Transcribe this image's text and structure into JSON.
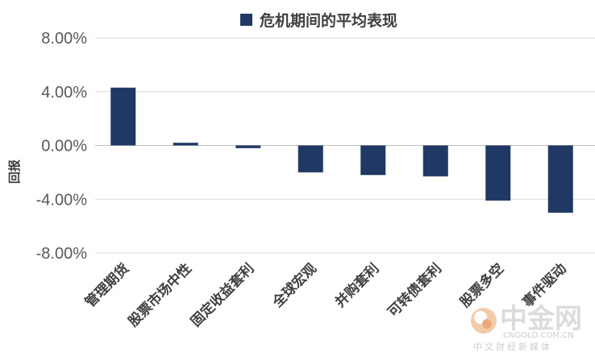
{
  "chart_data": {
    "type": "bar",
    "title": "",
    "legend": {
      "label": "危机期间的平均表现",
      "position": "top-center"
    },
    "ylabel": "回报",
    "xlabel": "",
    "ylim": [
      -8,
      8
    ],
    "yticks": [
      8,
      4,
      0,
      -4,
      -8
    ],
    "ytick_labels": [
      "8.00%",
      "4.00%",
      "0.00%",
      "-4.00%",
      "-8.00%"
    ],
    "grid": true,
    "categories": [
      "管理期货",
      "股票市场中性",
      "固定收益套利",
      "全球宏观",
      "并购套利",
      "可转债套利",
      "股票多空",
      "事件驱动"
    ],
    "series": [
      {
        "name": "危机期间的平均表现",
        "values": [
          4.3,
          0.2,
          -0.2,
          -2.0,
          -2.2,
          -2.3,
          -4.1,
          -5.0
        ]
      }
    ],
    "colors": {
      "bar": "#1f3864",
      "grid": "#d9d9d9",
      "axis": "#bfbfbf"
    }
  },
  "watermark": {
    "brand": "中金网",
    "domain": "CNGOLD.COM.CN",
    "tagline": "中文财经新媒体"
  }
}
